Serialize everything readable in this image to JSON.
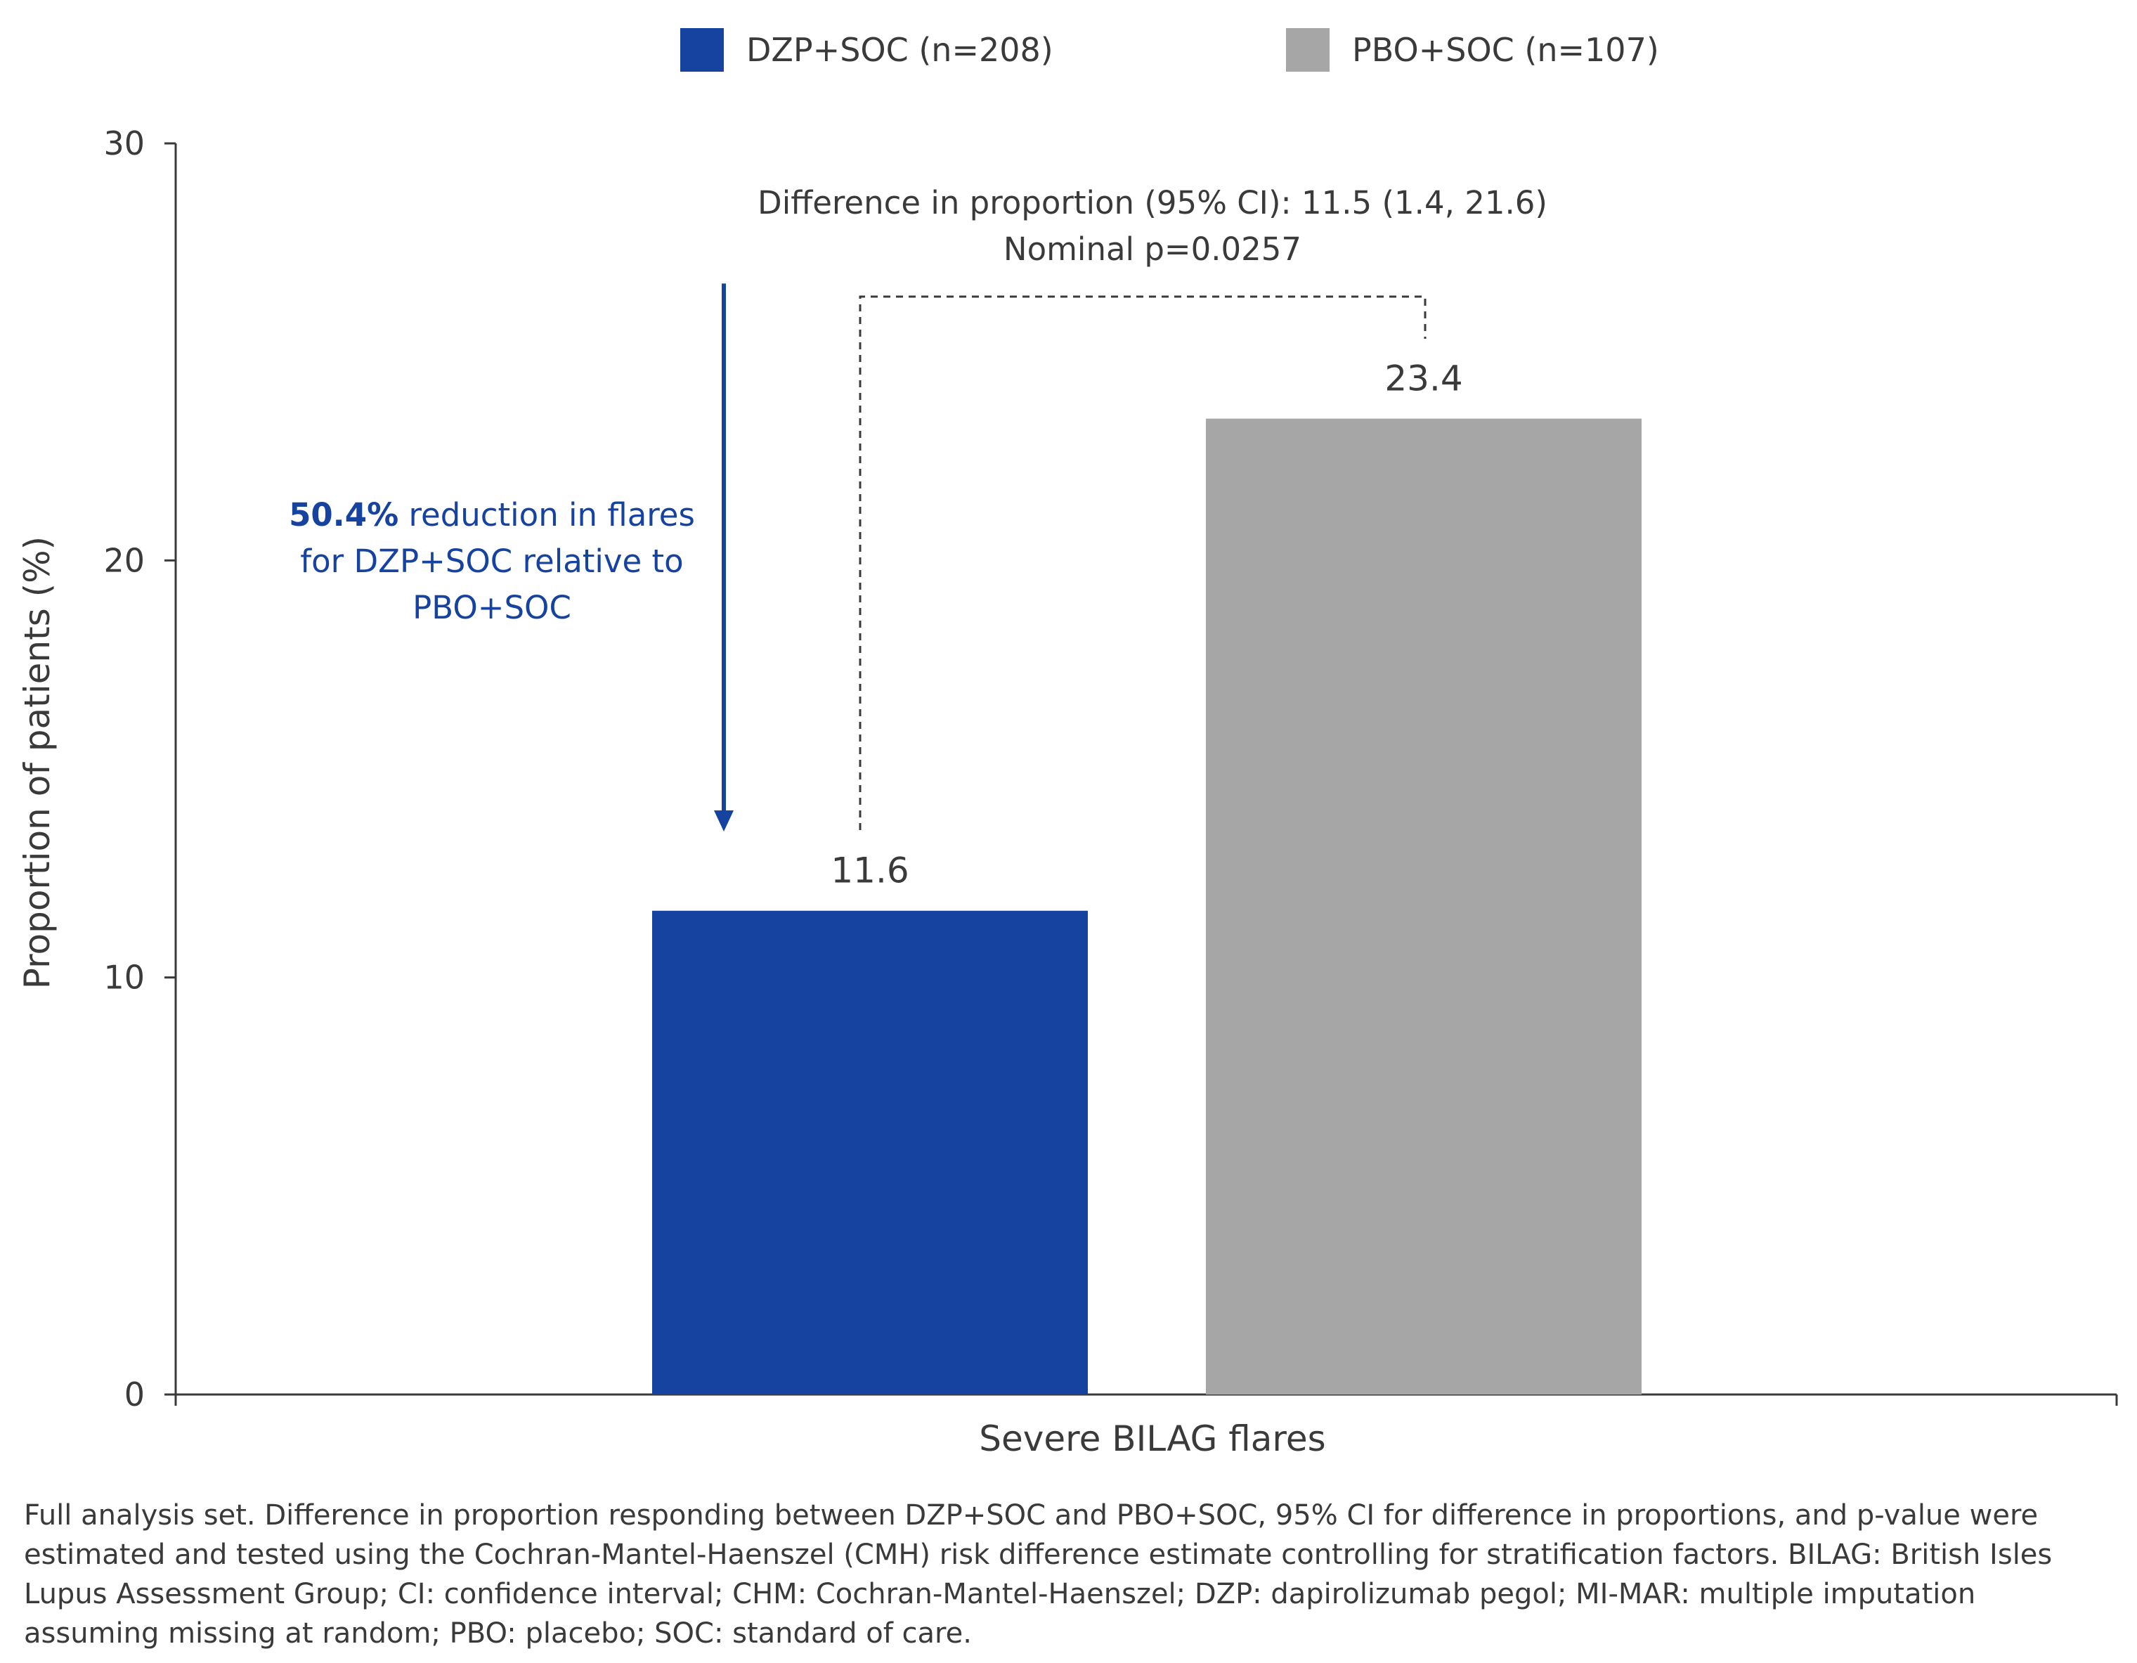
{
  "chart_data": {
    "type": "bar",
    "categories": [
      "Severe BILAG flares"
    ],
    "series": [
      {
        "name": "DZP+SOC (n=208)",
        "values": [
          11.6
        ],
        "color": "#1642a0"
      },
      {
        "name": "PBO+SOC (n=107)",
        "values": [
          23.4
        ],
        "color": "#a6a6a6"
      }
    ],
    "xlabel": "Severe BILAG flares",
    "ylabel": "Proportion of patients (%)",
    "ylim": [
      0,
      30
    ],
    "yticks": [
      0,
      10,
      20,
      30
    ],
    "data_labels": [
      "11.6",
      "23.4"
    ],
    "legend_position": "top",
    "grid": false,
    "annotations": {
      "difference_line1": "Difference in proportion (95% CI): 11.5 (1.4, 21.6)",
      "difference_line2": "Nominal p=0.0257",
      "reduction_bold": "50.4%",
      "reduction_line1_rest": " reduction in flares",
      "reduction_line2": "for DZP+SOC relative to",
      "reduction_line3": "PBO+SOC",
      "arrow_from_value": 26,
      "arrow_to_value": 13.5
    }
  },
  "footnote": "Full analysis set. Difference in proportion responding between DZP+SOC and PBO+SOC, 95% CI for difference in proportions, and p-value were estimated and tested using the Cochran-Mantel-Haenszel (CMH) risk difference estimate controlling for stratification factors. BILAG: British Isles Lupus Assessment Group; CI: confidence interval; CHM: Cochran-Mantel-Haenszel; DZP: dapirolizumab pegol; MI-MAR: multiple imputation assuming missing at random; PBO: placebo; SOC: standard of care."
}
